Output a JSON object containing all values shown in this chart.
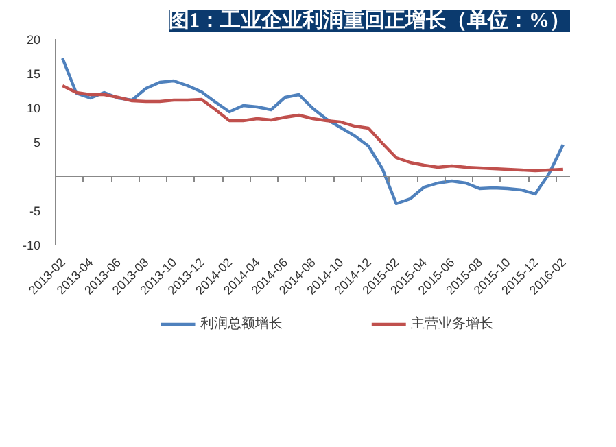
{
  "chart_data": {
    "type": "line",
    "title": "图1：工业企业利润重回正增长（单位：%）",
    "categories": [
      "2013-02",
      null,
      "2013-04",
      null,
      "2013-06",
      null,
      "2013-08",
      null,
      "2013-10",
      null,
      "2013-12",
      null,
      "2014-02",
      null,
      "2014-04",
      null,
      "2014-06",
      null,
      "2014-08",
      null,
      "2014-10",
      null,
      "2014-12",
      null,
      "2015-02",
      null,
      "2015-04",
      null,
      "2015-06",
      null,
      "2015-08",
      null,
      "2015-10",
      null,
      "2015-12",
      null,
      "2016-02"
    ],
    "series": [
      {
        "name": "利润总额增长",
        "color": "#4f81bd",
        "values": [
          17.2,
          12.1,
          11.4,
          12.2,
          11.4,
          11.1,
          12.8,
          13.7,
          13.9,
          13.2,
          12.3,
          10.8,
          9.4,
          10.3,
          10.1,
          9.7,
          11.5,
          11.9,
          9.9,
          8.3,
          7.1,
          5.9,
          4.4,
          1.1,
          -4.0,
          -3.3,
          -1.6,
          -1.0,
          -0.7,
          -1.0,
          -1.8,
          -1.7,
          -1.8,
          -2.0,
          -2.6,
          0.4,
          4.6
        ]
      },
      {
        "name": "主营业务增长",
        "color": "#c0504d",
        "values": [
          13.2,
          12.2,
          11.9,
          11.9,
          11.5,
          11.0,
          10.9,
          10.9,
          11.1,
          11.1,
          11.2,
          9.7,
          8.1,
          8.1,
          8.4,
          8.2,
          8.6,
          8.9,
          8.4,
          8.1,
          7.9,
          7.3,
          7.0,
          4.8,
          2.7,
          2.0,
          1.6,
          1.3,
          1.5,
          1.3,
          1.2,
          1.1,
          1.0,
          0.9,
          0.8,
          0.9,
          1.0
        ]
      }
    ],
    "ylim": [
      -10,
      20
    ],
    "yticks": [
      -10,
      -5,
      5,
      10,
      15,
      20
    ],
    "grid": false,
    "legend": "bottom"
  }
}
